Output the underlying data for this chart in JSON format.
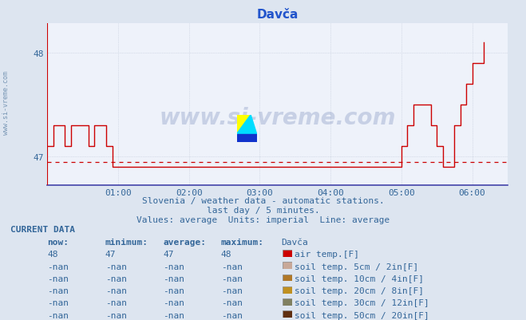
{
  "title_display": "Davča",
  "bg_color": "#dde5f0",
  "plot_bg_color": "#eef2fa",
  "line_color": "#cc0000",
  "grid_color": "#c0c8d8",
  "text_color": "#336699",
  "subtitle_lines": [
    "Slovenia / weather data - automatic stations.",
    "last day / 5 minutes.",
    "Values: average  Units: imperial  Line: average"
  ],
  "yticks": [
    47,
    48
  ],
  "ylim": [
    46.72,
    48.28
  ],
  "xlim_hours": [
    0.0,
    6.5
  ],
  "xtick_hours": [
    1,
    2,
    3,
    4,
    5,
    6
  ],
  "xtick_labels": [
    "01:00",
    "02:00",
    "03:00",
    "04:00",
    "05:00",
    "06:00"
  ],
  "dashed_y": 46.944,
  "current_data": {
    "rows": [
      {
        "now": "48",
        "min": "47",
        "avg": "47",
        "max": "48",
        "color": "#cc0000",
        "label": "air temp.[F]"
      },
      {
        "now": "-nan",
        "min": "-nan",
        "avg": "-nan",
        "max": "-nan",
        "color": "#c8a898",
        "label": "soil temp. 5cm / 2in[F]"
      },
      {
        "now": "-nan",
        "min": "-nan",
        "avg": "-nan",
        "max": "-nan",
        "color": "#b07828",
        "label": "soil temp. 10cm / 4in[F]"
      },
      {
        "now": "-nan",
        "min": "-nan",
        "avg": "-nan",
        "max": "-nan",
        "color": "#c09020",
        "label": "soil temp. 20cm / 8in[F]"
      },
      {
        "now": "-nan",
        "min": "-nan",
        "avg": "-nan",
        "max": "-nan",
        "color": "#808060",
        "label": "soil temp. 30cm / 12in[F]"
      },
      {
        "now": "-nan",
        "min": "-nan",
        "avg": "-nan",
        "max": "-nan",
        "color": "#603010",
        "label": "soil temp. 50cm / 20in[F]"
      }
    ]
  },
  "watermark_text": "www.si-vreme.com",
  "watermark_color": "#1a3a8a",
  "watermark_alpha": 0.18,
  "time_series_x": [
    0.0,
    0.0833,
    0.1667,
    0.25,
    0.3333,
    0.4167,
    0.5,
    0.5833,
    0.6667,
    0.75,
    0.8333,
    0.9167,
    1.0,
    1.0833,
    1.1667,
    1.25,
    1.3333,
    1.4167,
    1.5,
    1.5833,
    1.6667,
    1.75,
    1.8333,
    1.9167,
    2.0,
    2.0833,
    2.1667,
    2.25,
    2.3333,
    2.4167,
    2.5,
    2.5833,
    2.6667,
    2.75,
    2.8333,
    2.9167,
    3.0,
    3.0833,
    3.1667,
    3.25,
    3.3333,
    3.4167,
    3.5,
    3.5833,
    3.6667,
    3.75,
    3.8333,
    3.9167,
    4.0,
    4.0833,
    4.1667,
    4.25,
    4.3333,
    4.4167,
    4.5,
    4.5833,
    4.6667,
    4.75,
    4.8333,
    4.9167,
    5.0,
    5.0833,
    5.1667,
    5.25,
    5.3333,
    5.4167,
    5.5,
    5.5833,
    5.6667,
    5.75,
    5.8333,
    5.9167,
    6.0,
    6.0833,
    6.1667
  ],
  "time_series_y": [
    47.1,
    47.3,
    47.3,
    47.1,
    47.3,
    47.3,
    47.3,
    47.1,
    47.3,
    47.3,
    47.1,
    46.9,
    46.9,
    46.9,
    46.9,
    46.9,
    46.9,
    46.9,
    46.9,
    46.9,
    46.9,
    46.9,
    46.9,
    46.9,
    46.9,
    46.9,
    46.9,
    46.9,
    46.9,
    46.9,
    46.9,
    46.9,
    46.9,
    46.9,
    46.9,
    46.9,
    46.9,
    46.9,
    46.9,
    46.9,
    46.9,
    46.9,
    46.9,
    46.9,
    46.9,
    46.9,
    46.9,
    46.9,
    46.9,
    46.9,
    46.9,
    46.9,
    46.9,
    46.9,
    46.9,
    46.9,
    46.9,
    46.9,
    46.9,
    46.9,
    47.1,
    47.3,
    47.5,
    47.5,
    47.5,
    47.3,
    47.1,
    46.9,
    46.9,
    47.3,
    47.5,
    47.7,
    47.9,
    47.9,
    48.1
  ]
}
